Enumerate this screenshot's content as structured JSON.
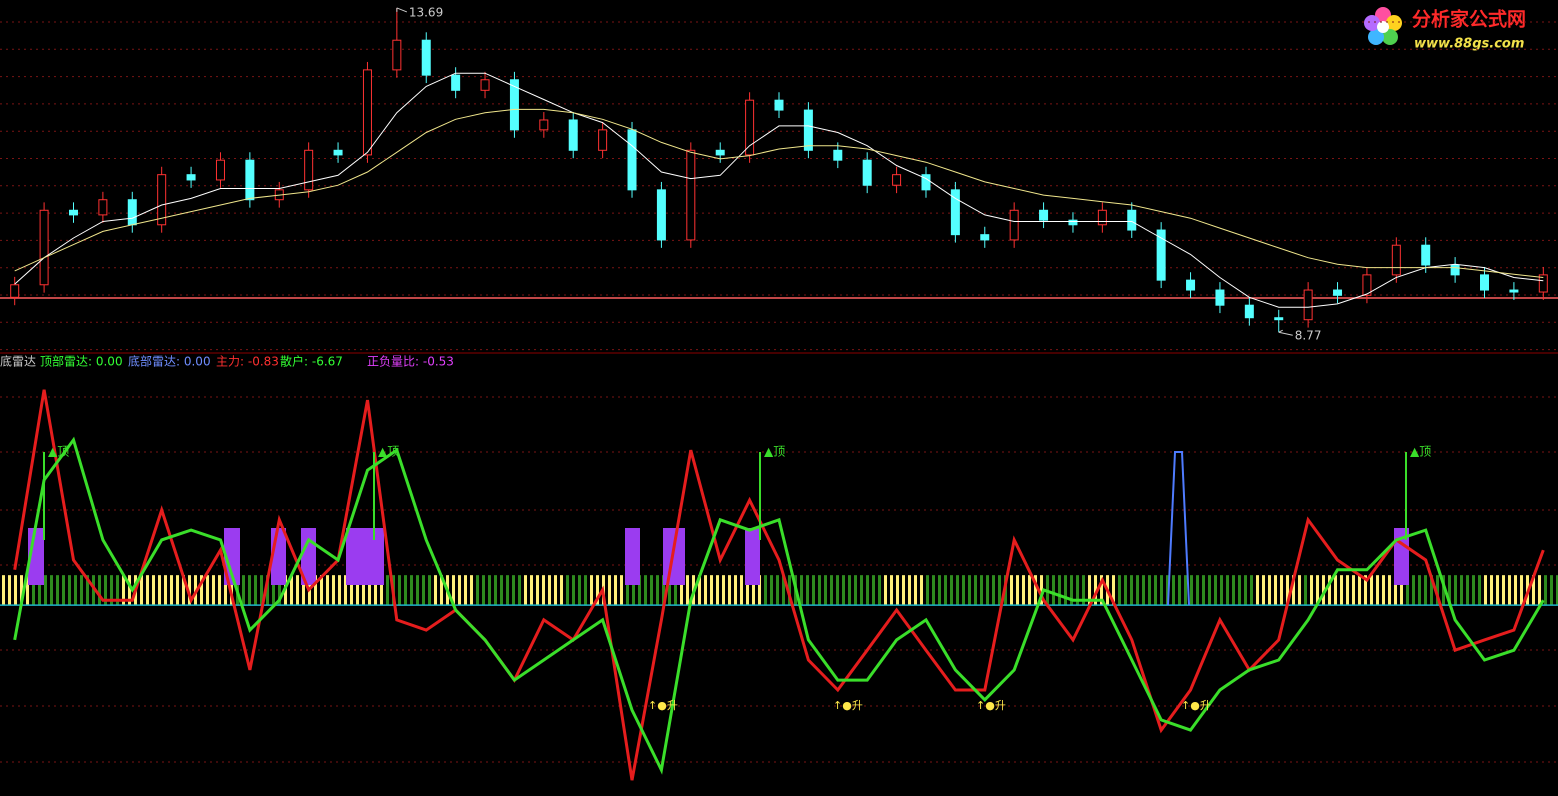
{
  "chart_data": [
    {
      "type": "candlestick",
      "categories": [
        null,
        null,
        null,
        null,
        null,
        null,
        null,
        null,
        null,
        null,
        null,
        null,
        null,
        null,
        null,
        null,
        null,
        null,
        null,
        null,
        null,
        null,
        null,
        null,
        null,
        null,
        null,
        null,
        null,
        null,
        null,
        null,
        null,
        null,
        null,
        null,
        null,
        null,
        null,
        null,
        null,
        null,
        null,
        null,
        null,
        null,
        null,
        null,
        null,
        null,
        null,
        null,
        null
      ],
      "open": [
        9.3,
        9.49,
        10.62,
        10.55,
        10.78,
        10.4,
        11.16,
        11.08,
        11.38,
        10.78,
        10.93,
        11.53,
        11.46,
        12.75,
        13.2,
        12.67,
        12.44,
        12.6,
        11.84,
        11.99,
        11.53,
        11.84,
        10.93,
        10.17,
        11.53,
        11.46,
        12.29,
        12.14,
        11.53,
        11.38,
        11.0,
        11.16,
        10.93,
        10.25,
        10.17,
        10.62,
        10.47,
        10.4,
        10.62,
        10.32,
        9.56,
        9.41,
        9.18,
        8.99,
        8.96,
        9.41,
        9.33,
        9.64,
        10.09,
        9.79,
        9.64,
        9.41,
        9.38
      ],
      "high": [
        9.61,
        10.74,
        10.74,
        10.9,
        10.9,
        11.28,
        11.28,
        11.5,
        11.5,
        11.05,
        11.65,
        11.65,
        12.87,
        13.69,
        13.32,
        12.79,
        12.72,
        12.72,
        12.11,
        12.11,
        11.96,
        11.96,
        11.05,
        11.65,
        11.65,
        12.41,
        12.41,
        12.26,
        11.65,
        11.5,
        11.28,
        11.28,
        11.05,
        10.37,
        10.74,
        10.74,
        10.59,
        10.74,
        10.74,
        10.44,
        9.68,
        9.53,
        9.3,
        9.11,
        9.53,
        9.53,
        9.76,
        10.21,
        10.21,
        9.91,
        9.76,
        9.53,
        9.76
      ],
      "low": [
        9.18,
        9.37,
        10.43,
        10.43,
        10.28,
        10.28,
        10.96,
        10.96,
        10.66,
        10.66,
        10.81,
        11.34,
        11.34,
        12.63,
        12.55,
        12.32,
        12.32,
        11.72,
        11.72,
        11.41,
        11.41,
        10.81,
        10.05,
        10.05,
        11.34,
        11.34,
        12.02,
        11.41,
        11.26,
        10.88,
        10.88,
        10.81,
        10.13,
        10.05,
        10.05,
        10.35,
        10.28,
        10.28,
        10.2,
        9.44,
        9.29,
        9.06,
        8.87,
        8.77,
        8.84,
        9.21,
        9.21,
        9.52,
        9.67,
        9.52,
        9.29,
        9.26,
        9.26
      ],
      "close": [
        9.49,
        10.62,
        10.55,
        10.78,
        10.4,
        11.16,
        11.08,
        11.38,
        10.78,
        10.93,
        11.53,
        11.46,
        12.75,
        13.2,
        12.67,
        12.44,
        12.6,
        11.84,
        11.99,
        11.53,
        11.84,
        10.93,
        10.17,
        11.53,
        11.46,
        12.29,
        12.14,
        11.53,
        11.38,
        11.0,
        11.16,
        10.93,
        10.25,
        10.17,
        10.62,
        10.47,
        10.4,
        10.62,
        10.32,
        9.56,
        9.41,
        9.18,
        8.99,
        8.96,
        9.41,
        9.33,
        9.64,
        10.09,
        9.79,
        9.64,
        9.41,
        9.38,
        9.64
      ],
      "up_color": "#ff3232",
      "down_color": "#54ffff",
      "series": [
        {
          "color": "#ffffff",
          "values": [
            9.5,
            9.9,
            10.2,
            10.45,
            10.5,
            10.7,
            10.8,
            10.95,
            10.95,
            10.95,
            11.05,
            11.15,
            11.5,
            12.1,
            12.5,
            12.7,
            12.7,
            12.5,
            12.3,
            12.1,
            11.95,
            11.6,
            11.2,
            11.1,
            11.15,
            11.6,
            11.9,
            11.9,
            11.8,
            11.6,
            11.3,
            11.1,
            10.8,
            10.55,
            10.45,
            10.45,
            10.45,
            10.45,
            10.45,
            10.2,
            9.95,
            9.6,
            9.3,
            9.15,
            9.15,
            9.2,
            9.35,
            9.6,
            9.75,
            9.8,
            9.75,
            9.6,
            9.55
          ]
        },
        {
          "color": "#f0e68c",
          "values": [
            9.7,
            9.9,
            10.1,
            10.3,
            10.4,
            10.5,
            10.6,
            10.7,
            10.8,
            10.85,
            10.9,
            11.0,
            11.2,
            11.5,
            11.8,
            12.0,
            12.1,
            12.15,
            12.15,
            12.1,
            12.0,
            11.85,
            11.65,
            11.5,
            11.4,
            11.45,
            11.55,
            11.6,
            11.6,
            11.55,
            11.45,
            11.35,
            11.2,
            11.05,
            10.95,
            10.85,
            10.8,
            10.75,
            10.7,
            10.6,
            10.5,
            10.35,
            10.2,
            10.05,
            9.9,
            9.8,
            9.75,
            9.75,
            9.75,
            9.75,
            9.7,
            9.65,
            9.6
          ]
        }
      ],
      "reference_line": 9.29,
      "reference_color": "#ff6060",
      "ylim": [
        8.47,
        13.81
      ]
    },
    {
      "type": "line",
      "title": "底雷达",
      "readouts": [
        {
          "text": "顶部雷达: 0.00",
          "color": "#33ff33"
        },
        {
          "text": "底部雷达: 0.00",
          "color": "#6f8dff"
        },
        {
          "text": "主力: -0.83",
          "color": "#ff3030"
        },
        {
          "text": "散户: -6.67",
          "color": "#33ff33"
        },
        {
          "text": "正负量比: -0.53",
          "color": "#e040fb"
        }
      ],
      "series": [
        {
          "color": "#e51d1d",
          "values": [
            53.7,
            97.6,
            56.1,
            46.3,
            46.3,
            68.3,
            46.3,
            58.5,
            29.3,
            65.9,
            48.8,
            56.1,
            95.1,
            41.5,
            39.0,
            43.9,
            36.6,
            26.8,
            41.5,
            36.6,
            48.8,
            2.4,
            41.5,
            82.9,
            56.1,
            70.7,
            56.1,
            31.7,
            24.4,
            34.1,
            43.9,
            34.1,
            24.4,
            24.4,
            61.0,
            46.3,
            36.6,
            51.2,
            36.6,
            14.6,
            24.4,
            41.5,
            29.3,
            36.6,
            65.9,
            56.1,
            51.2,
            61.0,
            56.1,
            34.1,
            36.6,
            39.0,
            58.5
          ]
        },
        {
          "color": "#3ade2a",
          "values": [
            36.6,
            75.6,
            85.4,
            61.0,
            48.8,
            61.0,
            63.4,
            61.0,
            39.0,
            46.3,
            61.0,
            56.1,
            78.0,
            82.9,
            61.0,
            43.9,
            36.6,
            26.8,
            31.7,
            36.6,
            41.5,
            19.5,
            4.9,
            46.3,
            65.9,
            63.4,
            65.9,
            36.6,
            26.8,
            26.8,
            36.6,
            41.5,
            29.3,
            22.0,
            29.3,
            48.8,
            46.3,
            46.3,
            31.7,
            17.1,
            14.6,
            24.4,
            29.3,
            31.7,
            41.5,
            53.7,
            53.7,
            61.0,
            63.4,
            41.5,
            31.7,
            34.1,
            46.3
          ]
        }
      ],
      "baseline": 45.1,
      "stripe_top": 52.4,
      "top_signals": [
        "▲顶",
        "▲顶",
        "▲顶",
        "▲顶"
      ],
      "rise_signals": [
        "↑●升",
        "↑●升",
        "↑●升",
        "↑●升"
      ],
      "ylim": [
        0,
        100
      ]
    }
  ],
  "logo": {
    "name": "分析家公式网",
    "url": "www.88gs.com"
  }
}
